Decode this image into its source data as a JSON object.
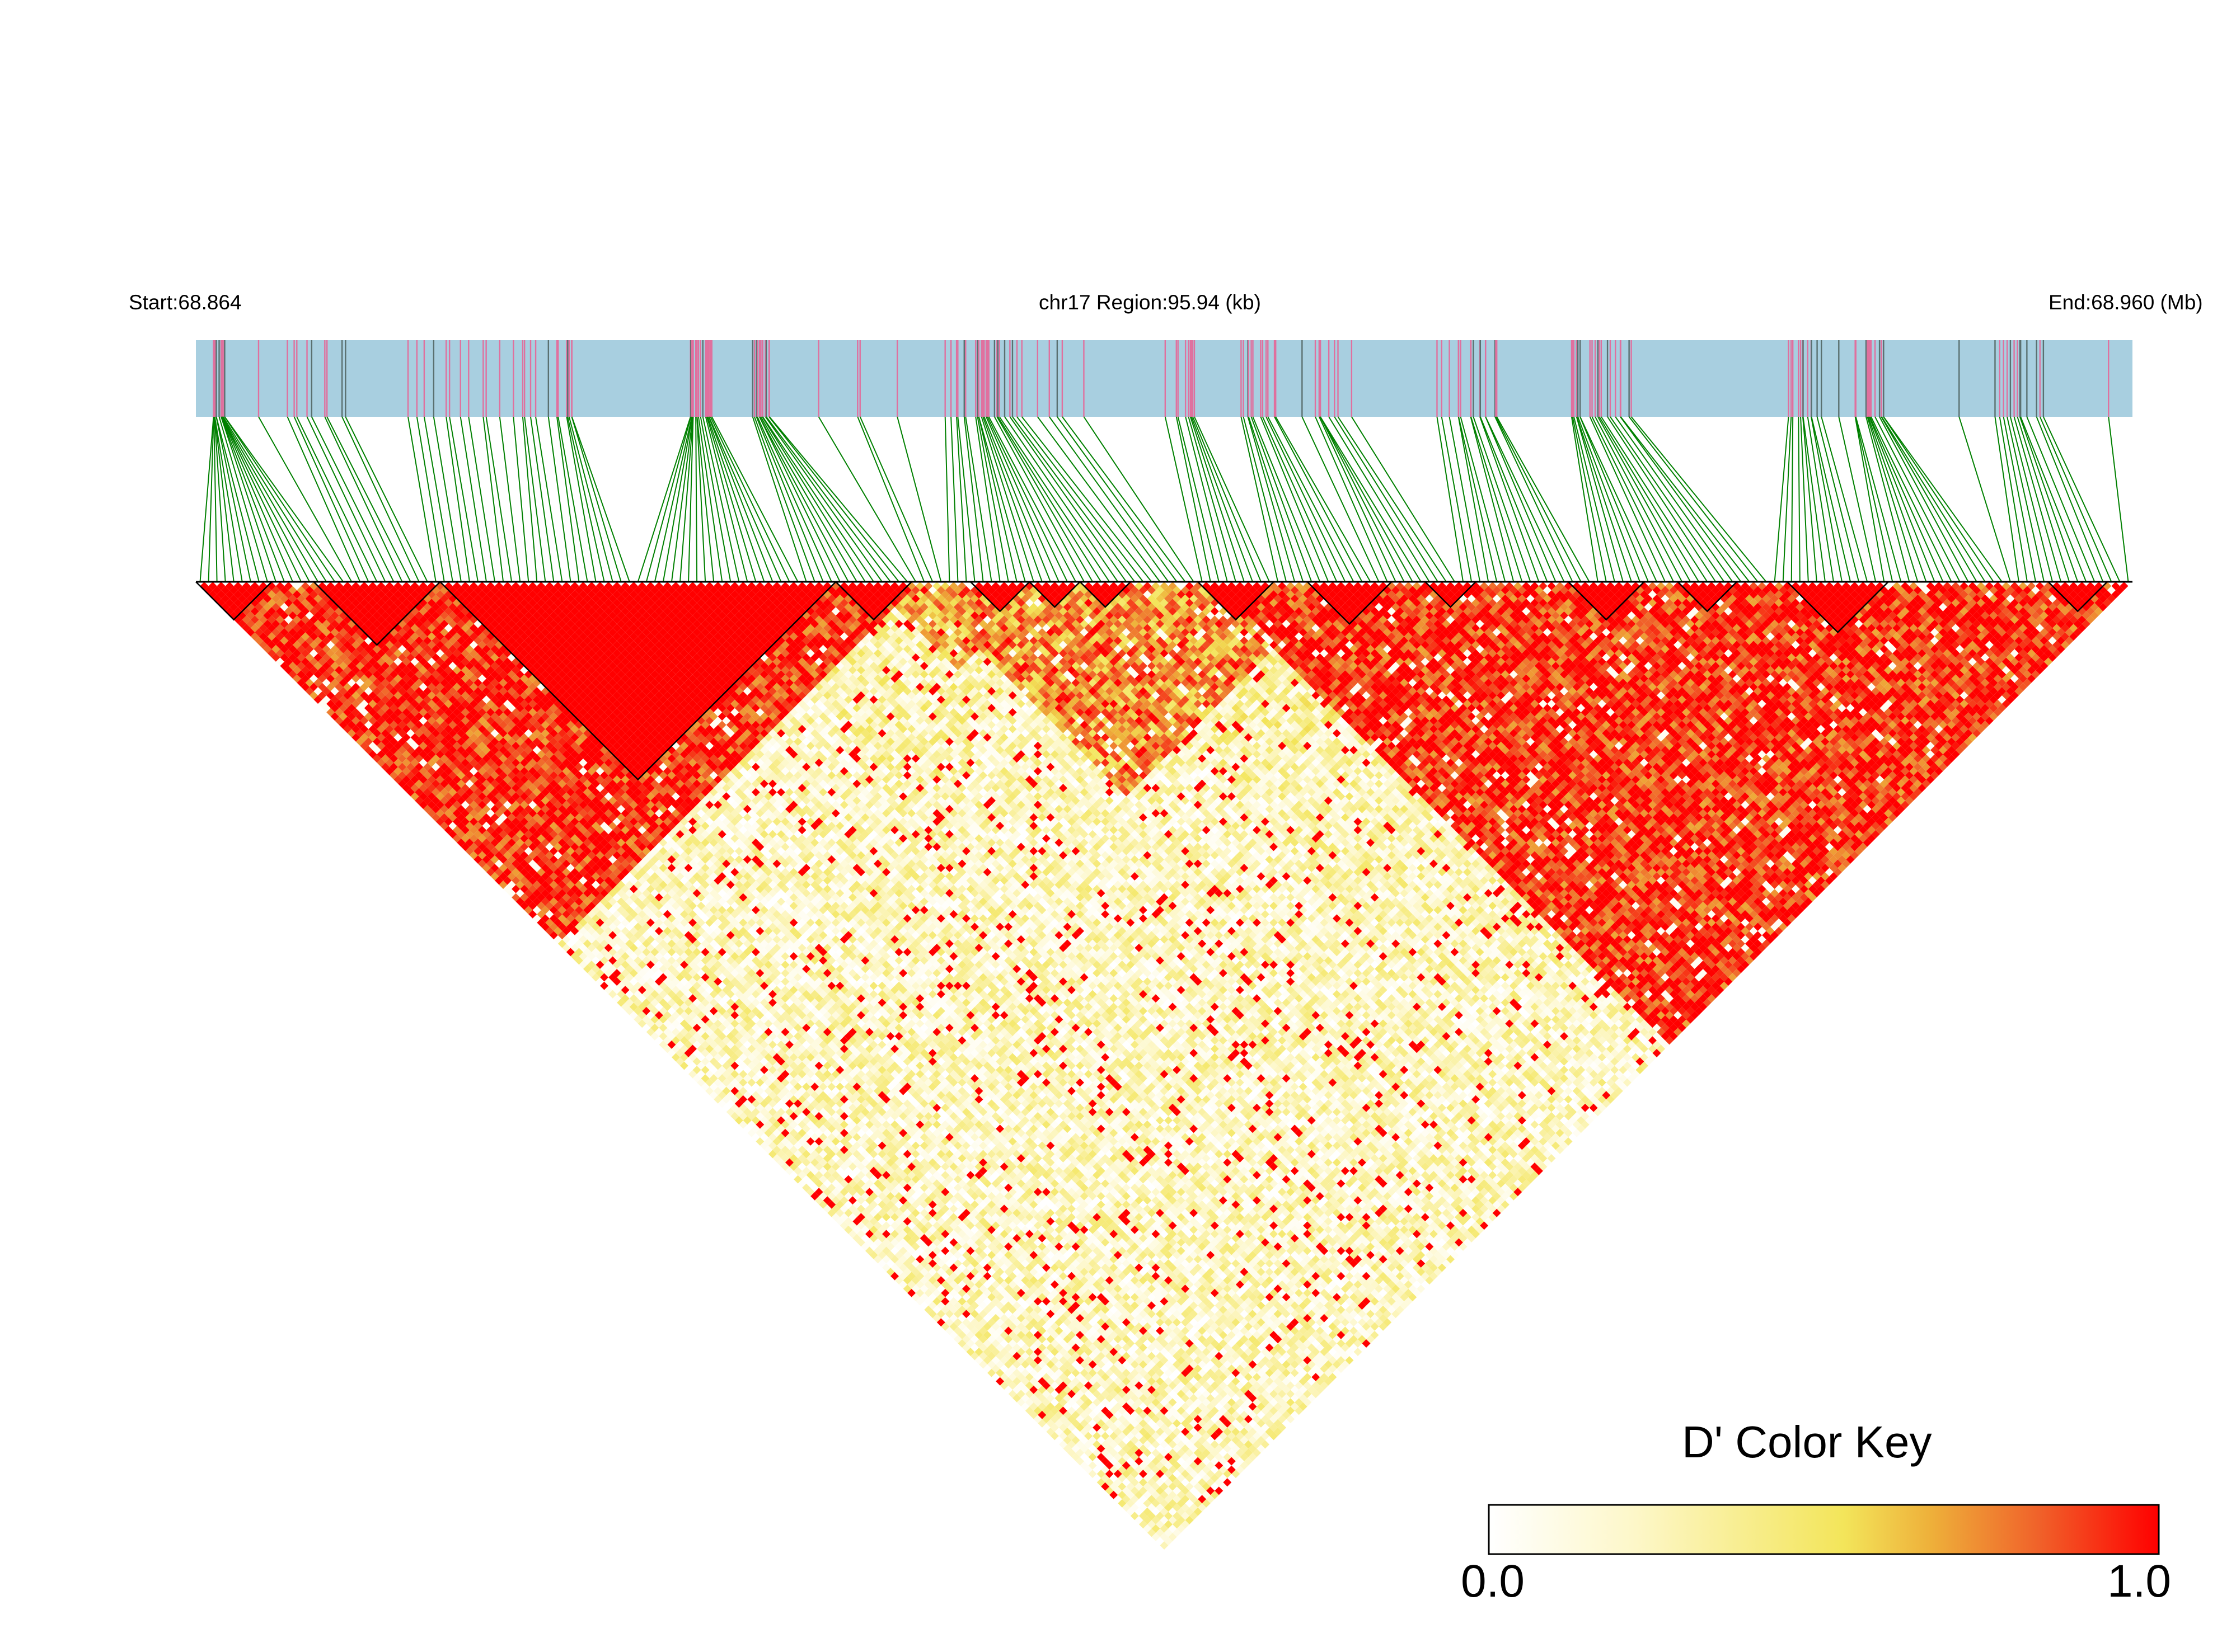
{
  "header": {
    "start_label": "Start:68.864",
    "region_label": "chr17 Region:95.94 (kb)",
    "end_label": "End:68.960 (Mb)"
  },
  "chart_data": {
    "type": "heatmap",
    "subtype": "LD triangle heatmap (D')",
    "chromosome": "chr17",
    "region_start_mb": 68.864,
    "region_end_mb": 68.96,
    "region_length_kb": 95.94,
    "marker_count_estimate": 230,
    "value_range": [
      0.0,
      1.0
    ],
    "colors": {
      "gene_track": "#a8cfe0",
      "variant_tick_pink": "#e0709e",
      "variant_tick_dark": "#5a7070",
      "connector_lines": "#008000",
      "block_outline": "#000000",
      "color_scale": [
        "#ffffff",
        "#fdf7c8",
        "#f3e55a",
        "#eeb03a",
        "#f0622a",
        "#ff0000"
      ]
    },
    "dense_variant_clusters_mb": [
      [
        68.8648,
        68.8655
      ],
      [
        68.868,
        68.8715
      ],
      [
        68.8745,
        68.8785
      ],
      [
        68.8797,
        68.8828
      ],
      [
        68.8884,
        68.8896
      ],
      [
        68.8915,
        68.8925
      ],
      [
        68.9008,
        68.9044
      ],
      [
        68.9044,
        68.9088
      ],
      [
        68.9126,
        68.9135
      ],
      [
        68.9157,
        68.9178
      ],
      [
        68.9185,
        68.9215
      ],
      [
        68.9255,
        68.9285
      ],
      [
        68.932,
        68.9352
      ],
      [
        68.9428,
        68.9445
      ],
      [
        68.9461,
        68.9478
      ],
      [
        68.9529,
        68.9557
      ]
    ],
    "ld_blocks": [
      {
        "first_marker": 0,
        "last_marker": 8
      },
      {
        "first_marker": 14,
        "last_marker": 28
      },
      {
        "first_marker": 29,
        "last_marker": 75
      },
      {
        "first_marker": 76,
        "last_marker": 84
      },
      {
        "first_marker": 92,
        "last_marker": 98
      },
      {
        "first_marker": 99,
        "last_marker": 104
      },
      {
        "first_marker": 105,
        "last_marker": 110
      },
      {
        "first_marker": 119,
        "last_marker": 127
      },
      {
        "first_marker": 132,
        "last_marker": 141
      },
      {
        "first_marker": 146,
        "last_marker": 151
      },
      {
        "first_marker": 163,
        "last_marker": 171
      },
      {
        "first_marker": 176,
        "last_marker": 182
      },
      {
        "first_marker": 189,
        "last_marker": 200
      },
      {
        "first_marker": 220,
        "last_marker": 226
      }
    ],
    "high_ld_regions": [
      {
        "markers": [
          0,
          85
        ],
        "mean_d_prime": 0.93
      },
      {
        "markers": [
          85,
          135
        ],
        "mean_d_prime": 0.72
      },
      {
        "markers": [
          120,
          230
        ],
        "mean_d_prime": 0.92
      }
    ],
    "moderate_ld_regions": [
      {
        "markers": [
          10,
          60
        ],
        "mean_d_prime": 0.68
      },
      {
        "markers": [
          60,
          110
        ],
        "mean_d_prime": 0.28
      },
      {
        "markers": [
          80,
          100
        ],
        "mean_d_prime": 0.62
      },
      {
        "markers": [
          100,
          150
        ],
        "mean_d_prime": 0.3
      },
      {
        "markers": [
          160,
          230
        ],
        "mean_d_prime": 0.66
      },
      {
        "markers": [
          25,
          120
        ],
        "mean_d_prime": 0.2
      },
      {
        "markers": [
          100,
          200
        ],
        "mean_d_prime": 0.25
      }
    ],
    "background_d_prime": 0.22
  },
  "color_key": {
    "title": "D' Color Key",
    "min_label": "0.0",
    "max_label": "1.0"
  }
}
